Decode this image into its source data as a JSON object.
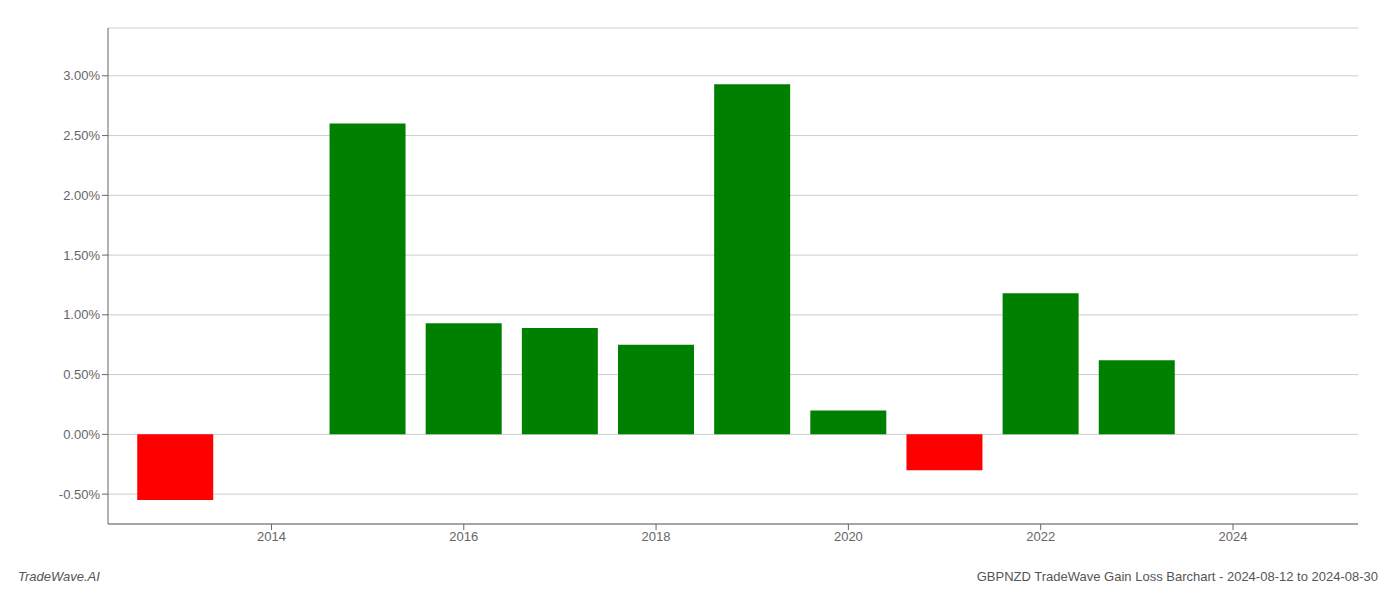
{
  "chart_data": {
    "type": "bar",
    "title": "GBPNZD TradeWave Gain Loss Barchart - 2024-08-12 to 2024-08-30",
    "annotations": [
      "TradeWave.AI"
    ],
    "x": [
      2013,
      2015,
      2016,
      2017,
      2018,
      2019,
      2020,
      2021,
      2022,
      2023
    ],
    "values": [
      -0.0055,
      0.026,
      0.0093,
      0.0089,
      0.0075,
      0.0293,
      0.002,
      -0.003,
      0.0118,
      0.0062
    ],
    "colors": [
      "#ff0000",
      "#008000",
      "#008000",
      "#008000",
      "#008000",
      "#008000",
      "#008000",
      "#ff0000",
      "#008000",
      "#008000"
    ],
    "xlim": [
      2012.3,
      2025.3
    ],
    "xticks": [
      2014,
      2016,
      2018,
      2020,
      2022,
      2024
    ],
    "ylim": [
      -0.0075,
      0.034
    ],
    "yticks": [
      {
        "value": -0.005,
        "label": "-0.50%"
      },
      {
        "value": 0,
        "label": "0.00%"
      },
      {
        "value": 0.005,
        "label": "0.50%"
      },
      {
        "value": 0.01,
        "label": "1.00%"
      },
      {
        "value": 0.015,
        "label": "1.50%"
      },
      {
        "value": 0.02,
        "label": "2.00%"
      },
      {
        "value": 0.025,
        "label": "2.50%"
      },
      {
        "value": 0.03,
        "label": "3.00%"
      }
    ],
    "grid": true
  }
}
